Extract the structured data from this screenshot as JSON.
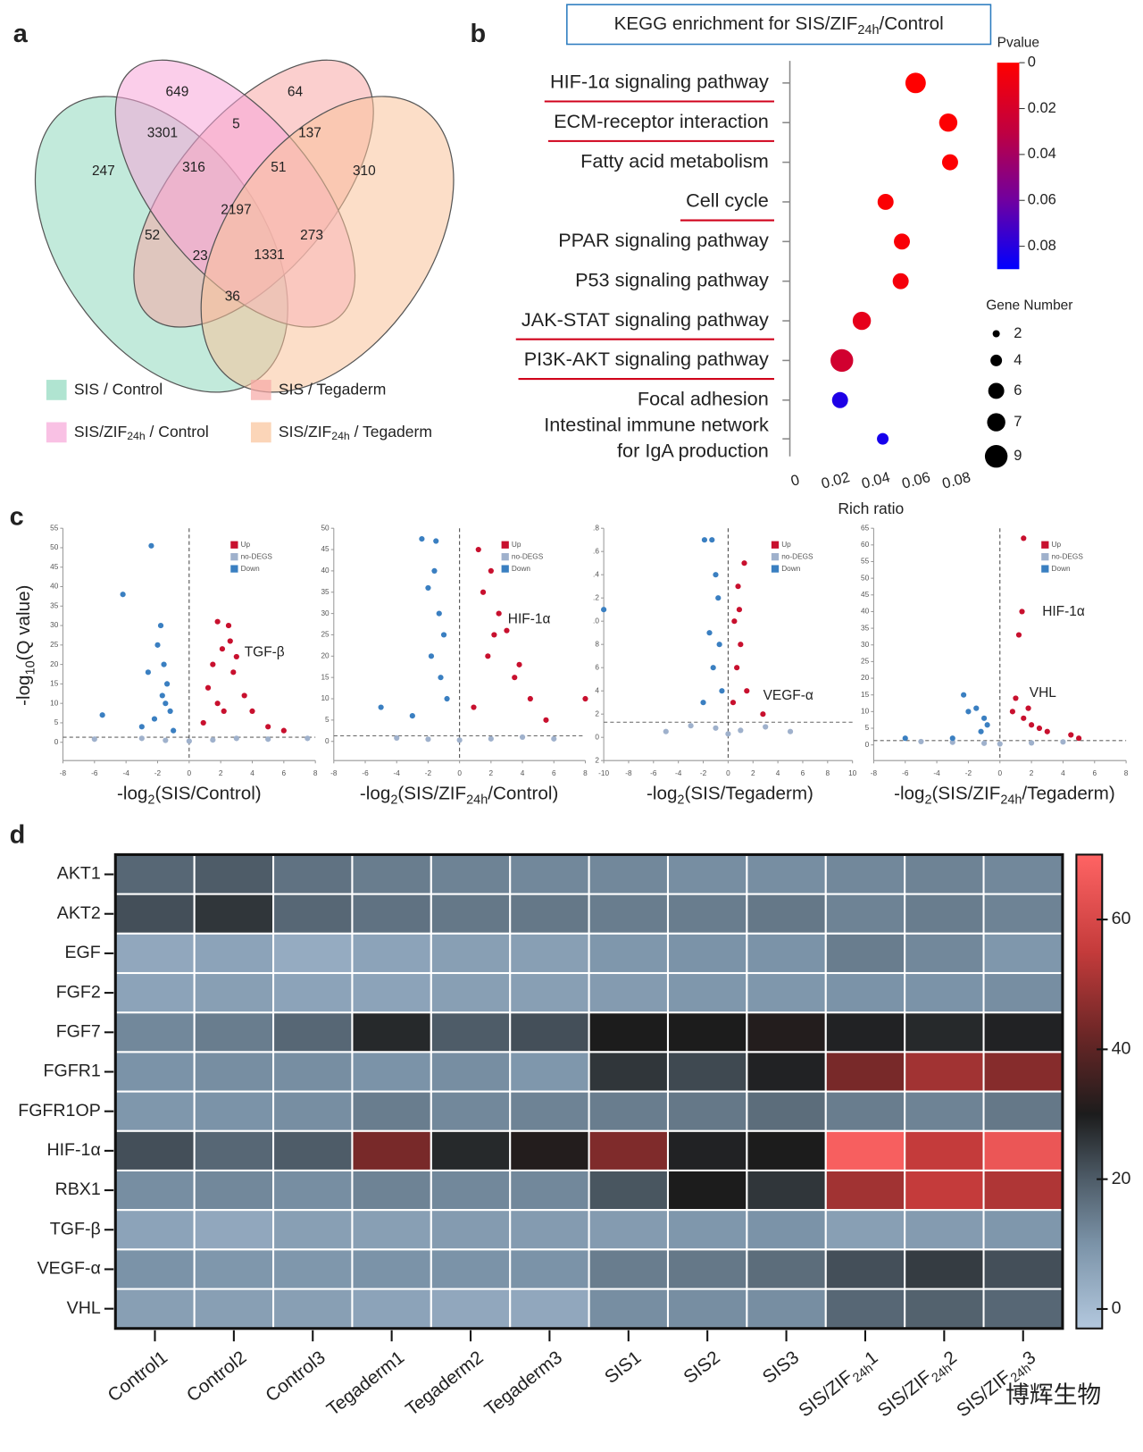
{
  "watermark": "博辉生物",
  "chart_data": [
    {
      "type": "venn",
      "panel": "a",
      "sets": [
        {
          "name": [
            "SIS / Control"
          ],
          "color": "#8fd9bd"
        },
        {
          "name": [
            "SIS / Tegaderm"
          ],
          "color": "#f7a8a5"
        },
        {
          "name": [
            "SIS/ZIF",
            "24h",
            " / Control"
          ],
          "color": "#f7a6d9"
        },
        {
          "name": [
            "SIS/ZIF",
            "24h",
            " / Tegaderm"
          ],
          "color": "#f9c39a"
        }
      ],
      "values": [
        649,
        64,
        3301,
        5,
        137,
        247,
        316,
        51,
        310,
        2197,
        52,
        273,
        23,
        1331,
        36
      ]
    },
    {
      "type": "bubble",
      "panel": "b",
      "title": [
        "KEGG enrichment for SIS/ZIF",
        "24h",
        "/Control"
      ],
      "categories": [
        [
          "HIF-1α signaling pathway"
        ],
        [
          "ECM-receptor interaction"
        ],
        [
          "Fatty acid metabolism"
        ],
        [
          "Cell cycle"
        ],
        [
          "PPAR signaling pathway"
        ],
        [
          "P53 signaling pathway"
        ],
        [
          "JAK-STAT signaling pathway"
        ],
        [
          "PI3K-AKT signaling pathway"
        ],
        [
          "Focal adhesion"
        ],
        [
          "Intestinal immune network",
          "for IgA production"
        ]
      ],
      "values": [
        0.0624,
        0.0786,
        0.0795,
        0.0475,
        0.0556,
        0.055,
        0.0357,
        0.0258,
        0.0249,
        0.0461
      ],
      "sizes": [
        8,
        7,
        6,
        6,
        6,
        6,
        7,
        9,
        6,
        4
      ],
      "pvalues": [
        0.0,
        0.001,
        0.001,
        0.002,
        0.003,
        0.005,
        0.012,
        0.022,
        0.082,
        0.084
      ],
      "underlined": [
        0,
        1,
        3,
        6,
        7
      ],
      "underline_color": "#d0021b",
      "xlim": [
        0,
        0.08
      ],
      "xticks": [
        0,
        0.02,
        0.04,
        0.06,
        0.08
      ],
      "xlabel": "Rich ratio",
      "colorbar": {
        "title": "Pvalue",
        "lim": [
          0,
          0.09
        ],
        "ticks": [
          0,
          0.02,
          0.04,
          0.06,
          0.08
        ],
        "colors": [
          "#ff0000",
          "#c00040",
          "#7000a0",
          "#0000ff"
        ]
      },
      "size_legend": {
        "title": "Gene Number",
        "values": [
          2,
          4,
          6,
          7,
          9
        ]
      }
    },
    {
      "type": "volcano",
      "panel": "c",
      "ylabel": [
        "-log",
        "10",
        "(Q value)"
      ],
      "plots": [
        {
          "xlabel": [
            "-log",
            "2",
            "(SIS/Control)"
          ],
          "xlim": [
            -8,
            8
          ],
          "xticks": [
            -8,
            -6,
            -4,
            -2,
            0,
            2,
            4,
            6,
            8
          ],
          "ylim": [
            -4.7,
            55
          ],
          "yticks": [
            0,
            5,
            10,
            15,
            20,
            25,
            30,
            35,
            40,
            45,
            50,
            55
          ],
          "hline": 1.3,
          "vline": 0,
          "annotations": [
            "TGF-β"
          ],
          "series": [
            {
              "name": "Up",
              "color": "#c8102e",
              "x": [
                1.8,
                2.5,
                2.1,
                1.5,
                1.2,
                2.8,
                3.0,
                1.8,
                2.2,
                4.0,
                3.5,
                6.0,
                0.9,
                2.6,
                5.0
              ],
              "y": [
                31,
                30,
                24,
                20,
                14,
                18,
                22,
                10,
                8,
                8,
                12,
                3,
                5,
                26,
                4
              ]
            },
            {
              "name": "no-DEGS",
              "color": "#9fb1cc",
              "x": [
                -3,
                -1.5,
                0,
                1.5,
                3,
                5,
                7.5,
                -6
              ],
              "y": [
                1,
                0.5,
                0.3,
                0.6,
                1,
                0.8,
                1,
                0.8
              ]
            },
            {
              "name": "Down",
              "color": "#3a7fc1",
              "x": [
                -4.2,
                -2.4,
                -1.8,
                -2.0,
                -1.6,
                -1.4,
                -1.7,
                -1.2,
                -2.2,
                -5.5,
                -3.0,
                -1.0,
                -1.5,
                -2.6
              ],
              "y": [
                38,
                50.5,
                30,
                25,
                20,
                15,
                12,
                8,
                6,
                7,
                4,
                3,
                10,
                18
              ]
            }
          ]
        },
        {
          "xlabel": [
            "-log",
            "2",
            "(SIS/ZIF",
            "24h",
            "/Control)"
          ],
          "xlim": [
            -8,
            8
          ],
          "xticks": [
            -8,
            -6,
            -4,
            -2,
            0,
            2,
            4,
            6,
            8
          ],
          "ylim": [
            -4.5,
            50
          ],
          "yticks": [
            0,
            5,
            10,
            15,
            20,
            25,
            30,
            35,
            40,
            45,
            50
          ],
          "hline": 1.3,
          "vline": 0,
          "annotations": [
            "HIF-1α"
          ],
          "series": [
            {
              "name": "Up",
              "color": "#c8102e",
              "x": [
                1.2,
                2.0,
                1.5,
                2.5,
                3,
                1.8,
                3.5,
                4.5,
                8,
                5.5,
                0.9,
                2.2,
                3.8
              ],
              "y": [
                45,
                40,
                35,
                30,
                26,
                20,
                15,
                10,
                10,
                5,
                8,
                25,
                18
              ]
            },
            {
              "name": "no-DEGS",
              "color": "#9fb1cc",
              "x": [
                -4,
                -2,
                0,
                2,
                4,
                6
              ],
              "y": [
                0.8,
                0.5,
                0.3,
                0.6,
                1,
                0.6
              ]
            },
            {
              "name": "Down",
              "color": "#3a7fc1",
              "x": [
                -2.4,
                -1.5,
                -2.0,
                -1.3,
                -1.0,
                -1.8,
                -1.2,
                -3,
                -5,
                -1.6,
                -0.8
              ],
              "y": [
                47.5,
                47,
                36,
                30,
                25,
                20,
                15,
                6,
                8,
                40,
                10
              ]
            }
          ]
        },
        {
          "xlabel": [
            "-log",
            "2",
            "(SIS/Tegaderm)"
          ],
          "xlim": [
            -10,
            10
          ],
          "xticks": [
            -10,
            -8,
            -6,
            -4,
            -2,
            0,
            2,
            4,
            6,
            8,
            10
          ],
          "ylim": [
            -2,
            18
          ],
          "yticks": [
            {
              "value": -2,
              "label": "2"
            },
            0,
            2,
            4,
            6,
            8,
            {
              "value": 10,
              "label": ".0"
            },
            {
              "value": 12,
              "label": ".2"
            },
            {
              "value": 14,
              "label": ".4"
            },
            {
              "value": 16,
              "label": ".6"
            },
            {
              "value": 18,
              "label": ".8"
            }
          ],
          "hline": 1.3,
          "vline": 0,
          "annotations": [
            "VEGF-α"
          ],
          "series": [
            {
              "name": "Up",
              "color": "#c8102e",
              "x": [
                1.3,
                0.9,
                0.5,
                1.0,
                0.7,
                1.5,
                0.4,
                2.8,
                0.8
              ],
              "y": [
                15,
                11,
                10,
                8,
                6,
                4,
                3,
                2,
                13
              ]
            },
            {
              "name": "no-DEGS",
              "color": "#9fb1cc",
              "x": [
                -5,
                -3,
                -1,
                0,
                1,
                3,
                5
              ],
              "y": [
                0.5,
                1,
                0.8,
                0.3,
                0.6,
                0.9,
                0.5
              ]
            },
            {
              "name": "Down",
              "color": "#3a7fc1",
              "x": [
                -10,
                -1.9,
                -1.3,
                -1.0,
                -1.5,
                -0.8,
                -1.2,
                -0.5,
                -2.0,
                -0.7
              ],
              "y": [
                11,
                17,
                17,
                14,
                9,
                12,
                6,
                4,
                3,
                8
              ]
            }
          ]
        },
        {
          "xlabel": [
            "-log",
            "2",
            "(SIS/ZIF",
            "24h",
            "/Tegaderm)"
          ],
          "xlim": [
            -8,
            8
          ],
          "xticks": [
            -8,
            -6,
            -4,
            -2,
            0,
            2,
            4,
            6,
            8
          ],
          "ylim": [
            -4.7,
            65
          ],
          "yticks": [
            0,
            5,
            10,
            15,
            20,
            25,
            30,
            35,
            40,
            45,
            50,
            55,
            60,
            65
          ],
          "hline": 1.3,
          "vline": 0,
          "annotations": [
            "HIF-1α",
            "VHL"
          ],
          "series": [
            {
              "name": "Up",
              "color": "#c8102e",
              "x": [
                1.5,
                1.4,
                1.2,
                1.0,
                0.8,
                1.5,
                2,
                2.5,
                3,
                4.5,
                1.8,
                5
              ],
              "y": [
                62,
                40,
                33,
                14,
                10,
                8,
                6,
                5,
                4,
                3,
                11,
                2
              ]
            },
            {
              "name": "no-DEGS",
              "color": "#9fb1cc",
              "x": [
                -5,
                -3,
                -1,
                0,
                2,
                4
              ],
              "y": [
                1,
                0.8,
                0.5,
                0.3,
                0.6,
                0.9
              ]
            },
            {
              "name": "Down",
              "color": "#3a7fc1",
              "x": [
                -2.3,
                -1.5,
                -1.0,
                -0.8,
                -2.0,
                -1.2,
                -3,
                -6
              ],
              "y": [
                15,
                11,
                8,
                6,
                10,
                4,
                2,
                2
              ]
            }
          ]
        }
      ]
    },
    {
      "type": "heatmap",
      "panel": "d",
      "rows": [
        "AKT1",
        "AKT2",
        "EGF",
        "FGF2",
        "FGF7",
        "FGFR1",
        "FGFR1OP",
        "HIF-1α",
        "RBX1",
        "TGF-β",
        "VEGF-α",
        "VHL"
      ],
      "columns": [
        [
          "Control1"
        ],
        [
          "Control2"
        ],
        [
          "Control3"
        ],
        [
          "Tegaderm1"
        ],
        [
          "Tegaderm2"
        ],
        [
          "Tegaderm3"
        ],
        [
          "SIS1"
        ],
        [
          "SIS2"
        ],
        [
          "SIS3"
        ],
        [
          "SIS/ZIF",
          "24h",
          "1"
        ],
        [
          "SIS/ZIF",
          "24h",
          "2"
        ],
        [
          "SIS/ZIF",
          "24h",
          "3"
        ]
      ],
      "values": [
        [
          18,
          20,
          16,
          14,
          13,
          12,
          12,
          11,
          11,
          12,
          13,
          12
        ],
        [
          22,
          26,
          18,
          16,
          15,
          15,
          14,
          14,
          15,
          13,
          14,
          13
        ],
        [
          5,
          6,
          4,
          6,
          7,
          7,
          9,
          10,
          10,
          14,
          12,
          9
        ],
        [
          6,
          7,
          6,
          6,
          7,
          7,
          8,
          9,
          9,
          10,
          10,
          11
        ],
        [
          12,
          14,
          18,
          28,
          20,
          22,
          30,
          30,
          31,
          29,
          28,
          29
        ],
        [
          10,
          11,
          11,
          10,
          11,
          9,
          26,
          23,
          29,
          44,
          50,
          46
        ],
        [
          9,
          10,
          11,
          14,
          12,
          13,
          14,
          15,
          17,
          14,
          13,
          15
        ],
        [
          22,
          18,
          20,
          44,
          28,
          31,
          45,
          29,
          30,
          68,
          55,
          65
        ],
        [
          11,
          12,
          11,
          13,
          12,
          12,
          21,
          30,
          26,
          50,
          55,
          52
        ],
        [
          6,
          5,
          7,
          7,
          8,
          8,
          8,
          9,
          10,
          7,
          8,
          9
        ],
        [
          10,
          9,
          9,
          10,
          10,
          10,
          14,
          15,
          17,
          22,
          25,
          22
        ],
        [
          7,
          7,
          7,
          6,
          5,
          5,
          11,
          11,
          11,
          18,
          19,
          18
        ]
      ],
      "clim": [
        -3,
        70
      ],
      "cticks": [
        0,
        20,
        40,
        60
      ],
      "colorscale": [
        [
          -3,
          "#b3c8de"
        ],
        [
          10,
          "#7b93a8"
        ],
        [
          20,
          "#4e5c68"
        ],
        [
          30,
          "#1c1c1c"
        ],
        [
          42,
          "#6a2626"
        ],
        [
          55,
          "#c43b3b"
        ],
        [
          70,
          "#ff6464"
        ]
      ]
    }
  ]
}
